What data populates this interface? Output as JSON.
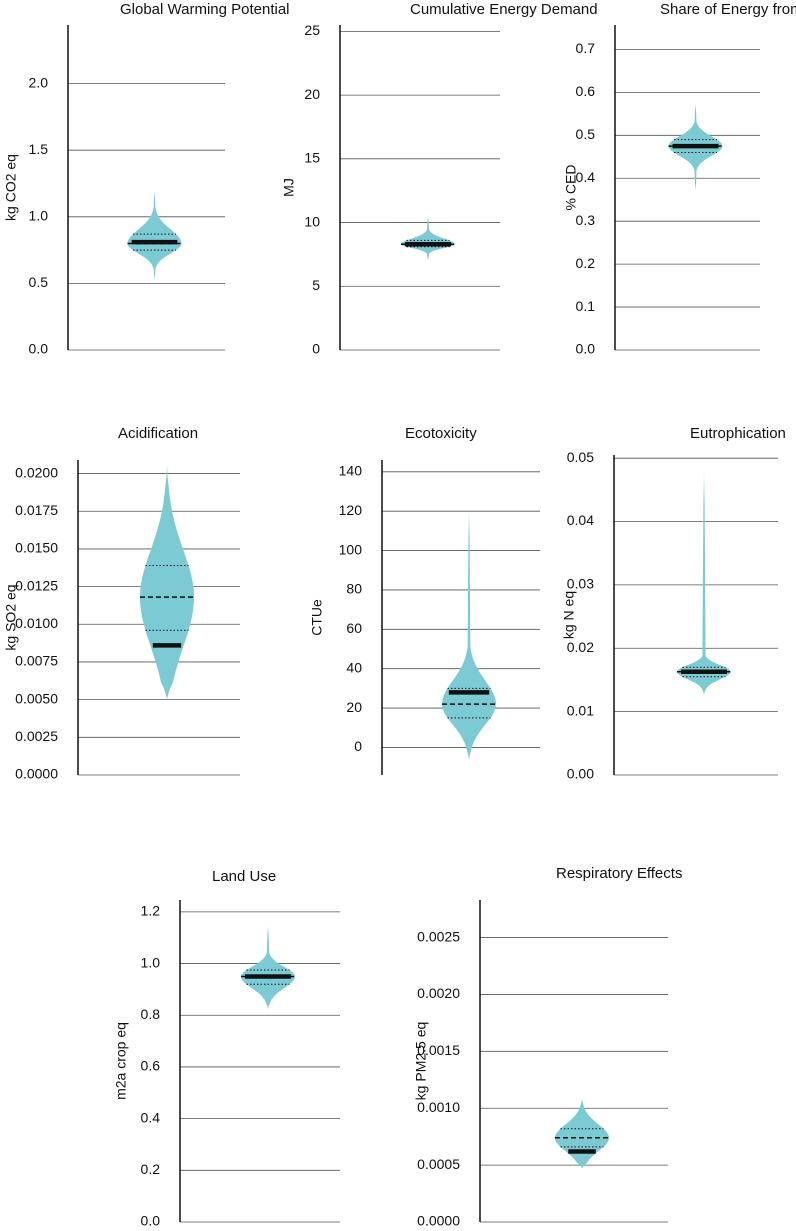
{
  "chart_data": [
    {
      "type": "violin",
      "title": "Global Warming Potential",
      "y_label": "kg CO2 eq",
      "color": "#7ccbd4",
      "ylim": [
        0,
        2.44
      ],
      "yticks": [
        {
          "value": 0,
          "label": "0.0"
        },
        0.5,
        {
          "value": 1,
          "label": "1.0"
        },
        1.5,
        {
          "value": 2,
          "label": "2.0"
        }
      ],
      "stats": {
        "min": 0.52,
        "q1": 0.75,
        "median": 0.8,
        "q3": 0.87,
        "max": 1.2,
        "mean": 0.81
      }
    },
    {
      "type": "violin",
      "title": "Cumulative Energy Demand",
      "y_label": "MJ",
      "color": "#7ccbd4",
      "ylim": [
        0,
        25.5
      ],
      "yticks": [
        0,
        5,
        10,
        15,
        20,
        25
      ],
      "stats": {
        "min": 7.0,
        "q1": 8.1,
        "median": 8.3,
        "q3": 8.6,
        "max": 10.5,
        "mean": 8.3
      }
    },
    {
      "type": "violin",
      "title": "Share of Energy from Coal",
      "y_label": "% CED",
      "color": "#7ccbd4",
      "ylim": [
        0,
        0.757
      ],
      "yticks": [
        {
          "value": 0,
          "label": "0.0"
        },
        0.1,
        0.2,
        0.3,
        0.4,
        0.5,
        0.6,
        0.7
      ],
      "stats": {
        "min": 0.37,
        "q1": 0.46,
        "median": 0.475,
        "q3": 0.49,
        "max": 0.575,
        "mean": 0.475
      }
    },
    {
      "type": "violin",
      "title": "Acidification",
      "y_label": "kg SO2 eq",
      "color": "#7ccbd4",
      "ylim": [
        0,
        0.0209
      ],
      "yticks": [
        {
          "value": 0,
          "label": "0.0000"
        },
        0.0025,
        {
          "value": 0.005,
          "label": "0.0050"
        },
        0.0075,
        {
          "value": 0.01,
          "label": "0.0100"
        },
        0.0125,
        {
          "value": 0.015,
          "label": "0.0150"
        },
        0.0175,
        {
          "value": 0.02,
          "label": "0.0200"
        }
      ],
      "stats": {
        "min": 0.005,
        "q1": 0.0096,
        "median": 0.0118,
        "q3": 0.0139,
        "max": 0.0207,
        "mean": 0.0086
      }
    },
    {
      "type": "violin",
      "title": "Ecotoxicity",
      "y_label": "CTUe",
      "color": "#7ccbd4",
      "ylim": [
        -14,
        146
      ],
      "yticks": [
        0,
        20,
        40,
        60,
        80,
        100,
        120,
        140
      ],
      "stats": {
        "min": -7,
        "q1": 15,
        "median": 22,
        "q3": 30,
        "max": 124,
        "mean": 28
      }
    },
    {
      "type": "violin",
      "title": "Eutrophication",
      "y_label": "kg N eq",
      "color": "#7ccbd4",
      "ylim": [
        0,
        0.0505
      ],
      "yticks": [
        {
          "value": 0,
          "label": "0.00"
        },
        0.01,
        0.02,
        0.03,
        0.04,
        0.05
      ],
      "stats": {
        "min": 0.0125,
        "q1": 0.0155,
        "median": 0.0163,
        "q3": 0.017,
        "max": 0.0485,
        "mean": 0.0163
      }
    },
    {
      "type": "violin",
      "title": "Land Use",
      "y_label": "m2a crop eq",
      "color": "#7ccbd4",
      "ylim": [
        0,
        1.246
      ],
      "yticks": [
        {
          "value": 0,
          "label": "0.0"
        },
        0.2,
        0.4,
        0.6,
        0.8,
        {
          "value": 1,
          "label": "1.0"
        },
        1.2
      ],
      "stats": {
        "min": 0.82,
        "q1": 0.92,
        "median": 0.95,
        "q3": 0.975,
        "max": 1.15,
        "mean": 0.95
      }
    },
    {
      "type": "violin",
      "title": "Respiratory Effects",
      "y_label": "kg PM2.5 eq",
      "color": "#7ccbd4",
      "ylim": [
        0,
        0.00283
      ],
      "yticks": [
        {
          "value": 0,
          "label": "0.0000"
        },
        0.0005,
        {
          "value": 0.001,
          "label": "0.0010"
        },
        0.0015,
        {
          "value": 0.002,
          "label": "0.0020"
        },
        0.0025
      ],
      "stats": {
        "min": 0.00047,
        "q1": 0.00066,
        "median": 0.00074,
        "q3": 0.00082,
        "max": 0.0011,
        "mean": 0.00062
      }
    }
  ]
}
